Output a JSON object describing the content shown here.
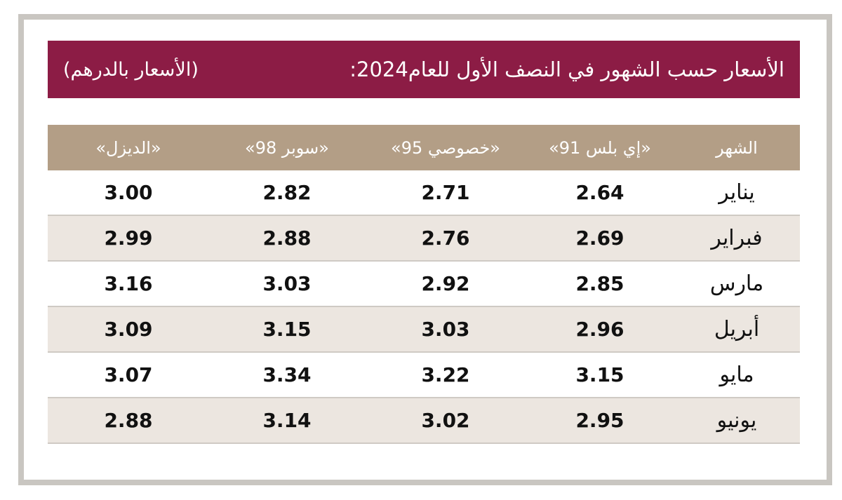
{
  "header": {
    "title": "الأسعار حسب الشهور في النصف الأول للعام2024:",
    "unit_note": "(الأسعار بالدرهم)"
  },
  "table": {
    "columns": [
      "الشهر",
      "«إي بلس 91»",
      "«خصوصي 95»",
      "«سوبر 98»",
      "«الديزل»"
    ],
    "rows": [
      [
        "يناير",
        "2.64",
        "2.71",
        "2.82",
        "3.00"
      ],
      [
        "فبراير",
        "2.69",
        "2.76",
        "2.88",
        "2.99"
      ],
      [
        "مارس",
        "2.85",
        "2.92",
        "3.03",
        "3.16"
      ],
      [
        "أبريل",
        "2.96",
        "3.03",
        "3.15",
        "3.09"
      ],
      [
        "مايو",
        "3.15",
        "3.22",
        "3.34",
        "3.07"
      ],
      [
        "يونيو",
        "2.95",
        "3.02",
        "3.14",
        "2.88"
      ]
    ]
  }
}
